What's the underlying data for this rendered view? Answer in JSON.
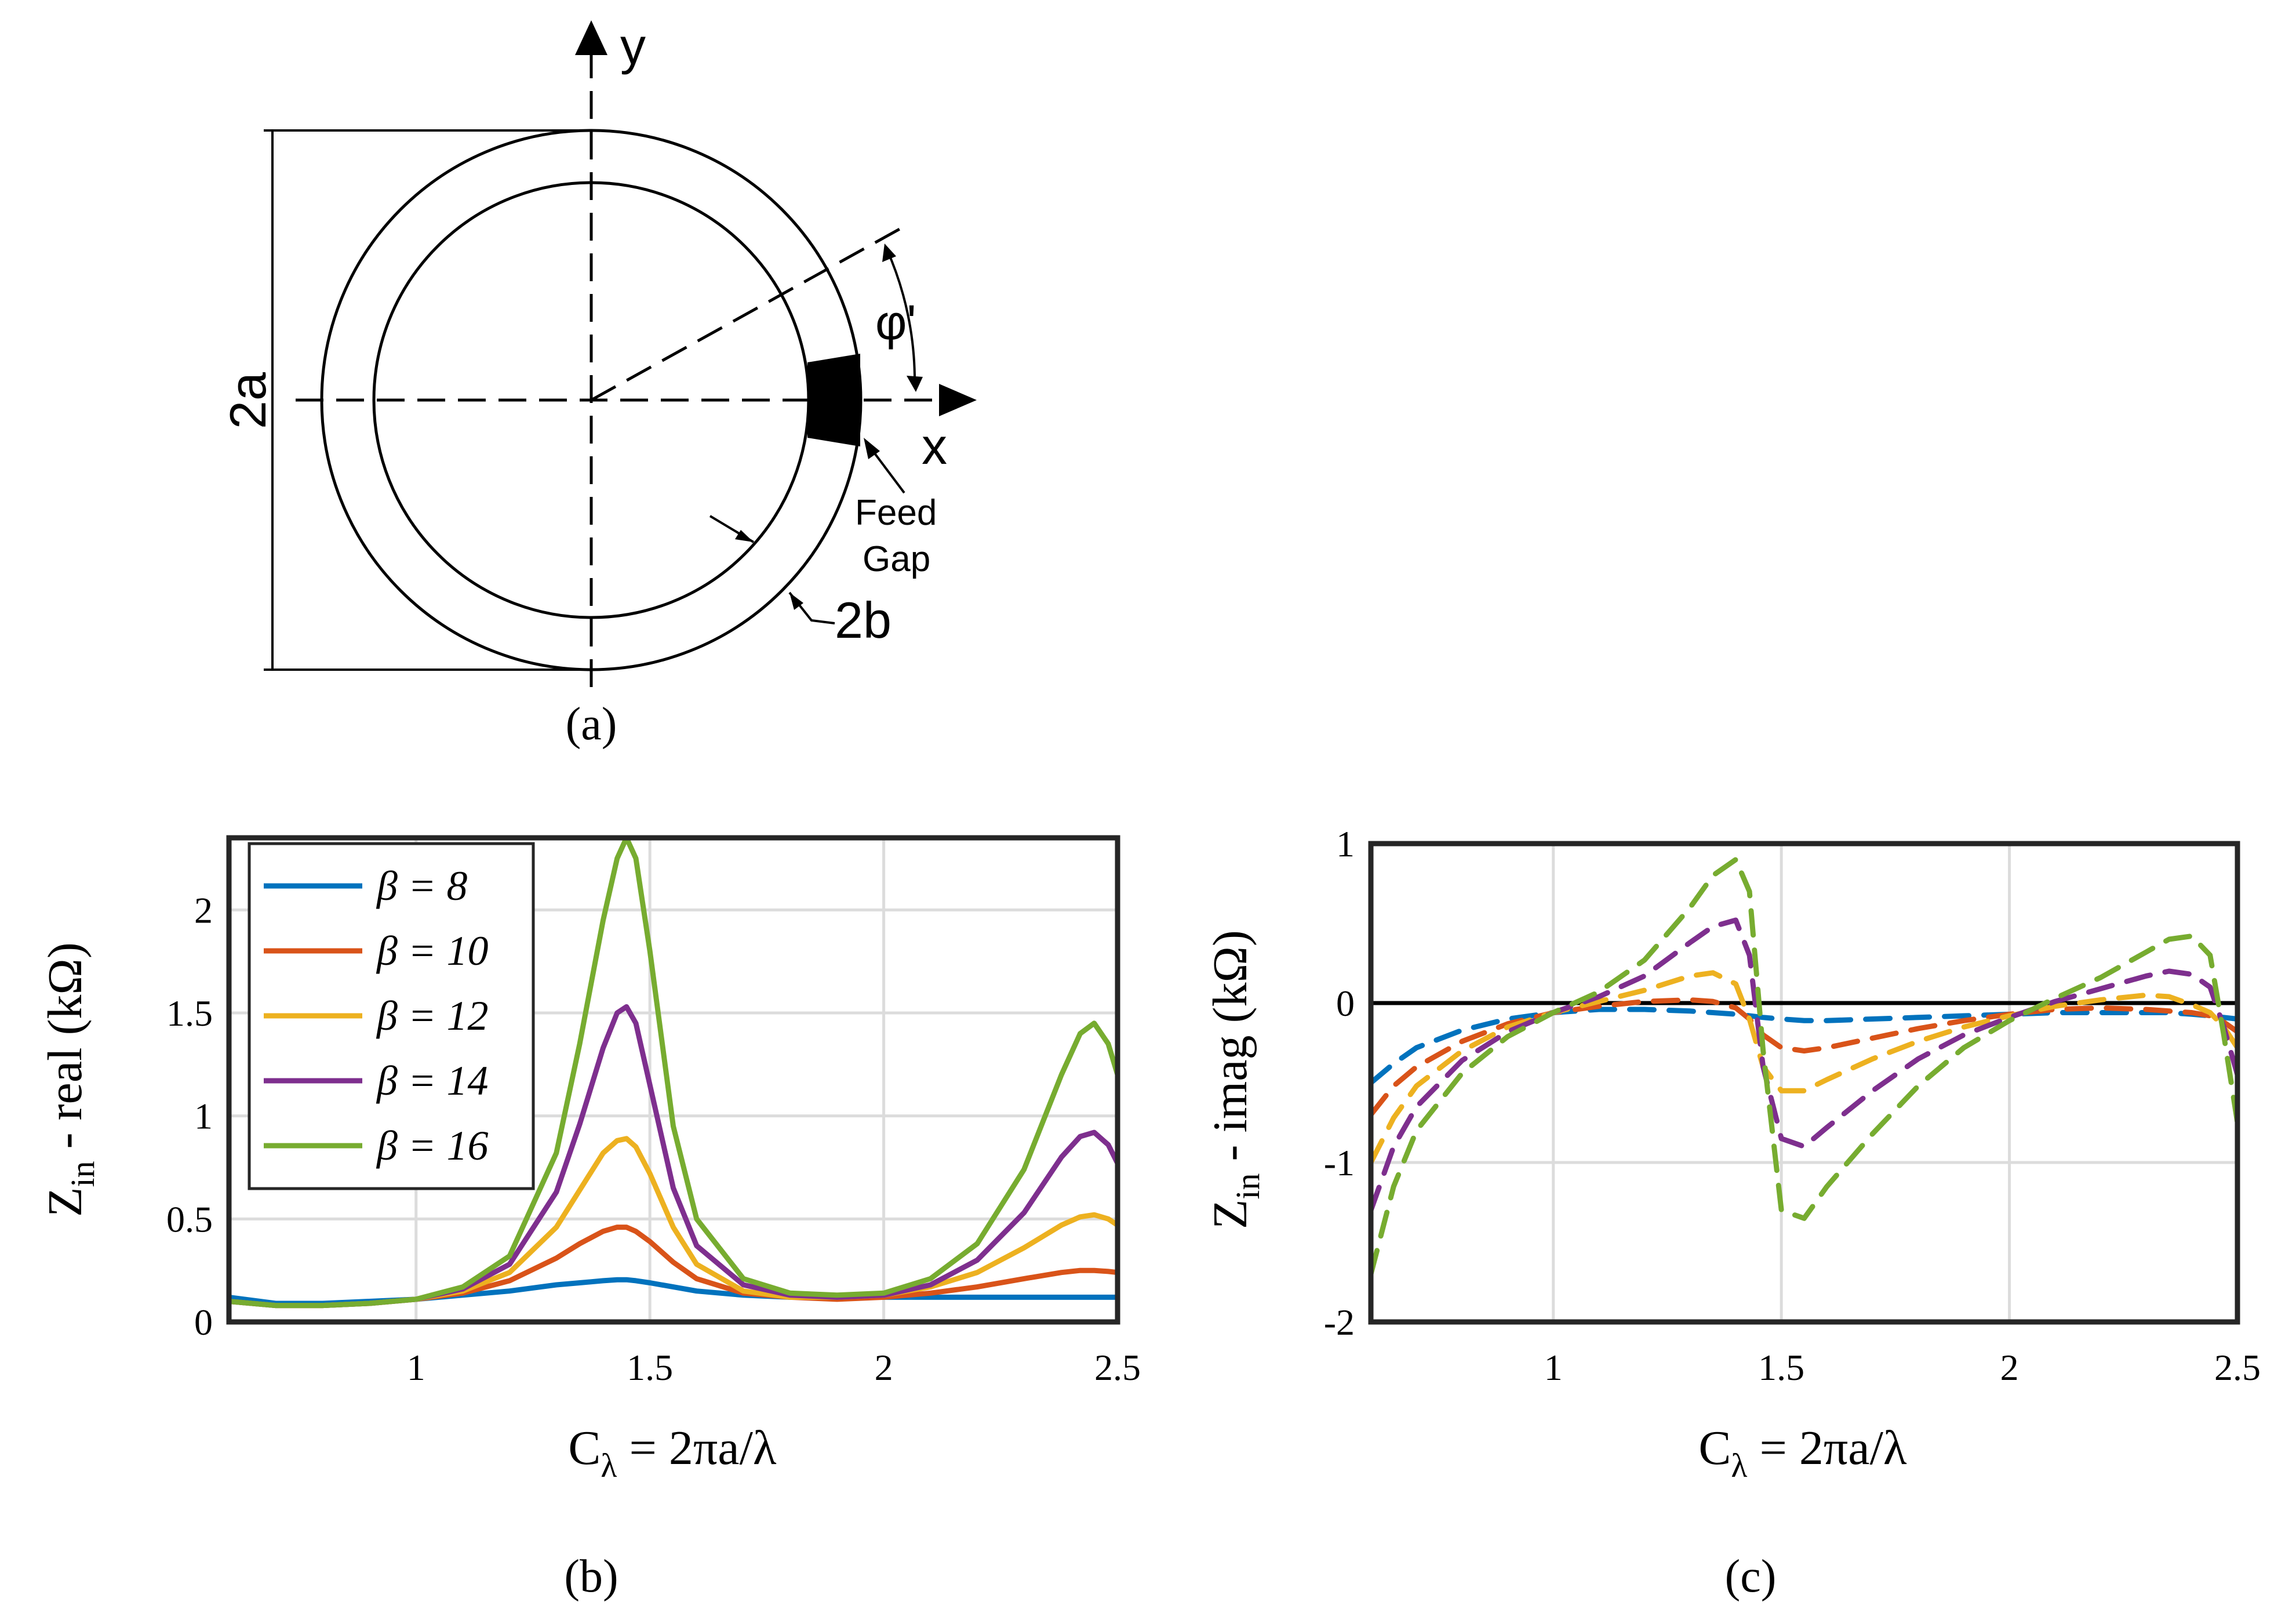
{
  "diagram": {
    "y_axis_label": "y",
    "x_axis_label": "x",
    "diameter_label": "2a",
    "wire_label": "2b",
    "angle_label": "φ'",
    "feed_label_line1": "Feed",
    "feed_label_line2": "Gap",
    "caption": "(a)"
  },
  "colors": {
    "series": [
      "#0072BD",
      "#D95319",
      "#EDB120",
      "#7E2F8E",
      "#77AC30"
    ],
    "grid": "#dcdcdc",
    "frame": "#262626"
  },
  "chart_data": [
    {
      "id": "b",
      "type": "line",
      "caption": "(b)",
      "title": "",
      "xlabel": "C_λ = 2πa/λ",
      "xlabel_main": "C",
      "xlabel_sub": "λ",
      "xlabel_rest": " = 2πa/λ",
      "ylabel": "Z_in - real (kΩ)",
      "ylabel_main": "Z",
      "ylabel_sub": "in",
      "ylabel_rest": " - real (kΩ)",
      "xlim": [
        0.6,
        2.5
      ],
      "ylim": [
        0,
        2.35
      ],
      "xticks": [
        1,
        1.5,
        2,
        2.5
      ],
      "xtick_labels": [
        "1",
        "1.5",
        "2",
        "2.5"
      ],
      "yticks": [
        0,
        0.5,
        1,
        1.5,
        2
      ],
      "ytick_labels": [
        "0",
        "0.5",
        "1",
        "1.5",
        "2"
      ],
      "grid": true,
      "legend_position": "top-left",
      "line_style": "solid",
      "x": [
        0.6,
        0.7,
        0.8,
        0.9,
        1.0,
        1.1,
        1.2,
        1.3,
        1.35,
        1.4,
        1.43,
        1.45,
        1.47,
        1.5,
        1.55,
        1.6,
        1.7,
        1.8,
        1.9,
        2.0,
        2.1,
        2.2,
        2.3,
        2.38,
        2.42,
        2.45,
        2.48,
        2.5
      ],
      "series": [
        {
          "name": "β = 8",
          "values": [
            0.12,
            0.09,
            0.09,
            0.1,
            0.11,
            0.13,
            0.15,
            0.18,
            0.19,
            0.2,
            0.205,
            0.205,
            0.2,
            0.19,
            0.17,
            0.15,
            0.13,
            0.12,
            0.12,
            0.12,
            0.12,
            0.12,
            0.12,
            0.12,
            0.12,
            0.12,
            0.12,
            0.12
          ]
        },
        {
          "name": "β = 10",
          "values": [
            0.1,
            0.08,
            0.08,
            0.09,
            0.11,
            0.14,
            0.2,
            0.31,
            0.38,
            0.44,
            0.46,
            0.46,
            0.44,
            0.39,
            0.29,
            0.21,
            0.14,
            0.12,
            0.11,
            0.12,
            0.14,
            0.17,
            0.21,
            0.24,
            0.25,
            0.25,
            0.245,
            0.24
          ]
        },
        {
          "name": "β = 12",
          "values": [
            0.1,
            0.08,
            0.08,
            0.09,
            0.11,
            0.15,
            0.24,
            0.46,
            0.64,
            0.82,
            0.88,
            0.89,
            0.85,
            0.72,
            0.46,
            0.28,
            0.15,
            0.12,
            0.12,
            0.13,
            0.17,
            0.24,
            0.36,
            0.47,
            0.51,
            0.52,
            0.5,
            0.47
          ]
        },
        {
          "name": "β = 14",
          "values": [
            0.1,
            0.08,
            0.08,
            0.09,
            0.11,
            0.16,
            0.28,
            0.63,
            0.96,
            1.33,
            1.5,
            1.53,
            1.45,
            1.15,
            0.65,
            0.37,
            0.18,
            0.13,
            0.12,
            0.13,
            0.18,
            0.3,
            0.53,
            0.8,
            0.9,
            0.92,
            0.86,
            0.77
          ]
        },
        {
          "name": "β = 16",
          "values": [
            0.1,
            0.08,
            0.08,
            0.09,
            0.11,
            0.17,
            0.32,
            0.82,
            1.35,
            1.95,
            2.25,
            2.35,
            2.25,
            1.8,
            0.95,
            0.5,
            0.21,
            0.14,
            0.13,
            0.14,
            0.21,
            0.38,
            0.74,
            1.2,
            1.4,
            1.45,
            1.35,
            1.2
          ]
        }
      ]
    },
    {
      "id": "c",
      "type": "line",
      "caption": "(c)",
      "title": "",
      "xlabel": "C_λ = 2πa/λ",
      "xlabel_main": "C",
      "xlabel_sub": "λ",
      "xlabel_rest": " = 2πa/λ",
      "ylabel": "Z_in - imag (kΩ)",
      "ylabel_main": "Z",
      "ylabel_sub": "in",
      "ylabel_rest": " - imag (kΩ)",
      "xlim": [
        0.6,
        2.5
      ],
      "ylim": [
        -2,
        1
      ],
      "xticks": [
        1,
        1.5,
        2,
        2.5
      ],
      "xtick_labels": [
        "1",
        "1.5",
        "2",
        "2.5"
      ],
      "yticks": [
        -2,
        -1,
        0,
        1
      ],
      "ytick_labels": [
        "-2",
        "-1",
        "0",
        "1"
      ],
      "grid": true,
      "zero_line": true,
      "line_style": "dashed",
      "x": [
        0.6,
        0.65,
        0.7,
        0.8,
        0.9,
        1.0,
        1.1,
        1.2,
        1.3,
        1.35,
        1.4,
        1.43,
        1.46,
        1.5,
        1.55,
        1.6,
        1.7,
        1.8,
        1.9,
        2.0,
        2.1,
        2.2,
        2.3,
        2.35,
        2.4,
        2.44,
        2.47,
        2.5
      ],
      "series": [
        {
          "name": "β = 8",
          "values": [
            -0.5,
            -0.38,
            -0.28,
            -0.17,
            -0.1,
            -0.06,
            -0.04,
            -0.04,
            -0.05,
            -0.06,
            -0.07,
            -0.08,
            -0.09,
            -0.1,
            -0.11,
            -0.11,
            -0.1,
            -0.09,
            -0.08,
            -0.07,
            -0.06,
            -0.06,
            -0.06,
            -0.06,
            -0.07,
            -0.08,
            -0.09,
            -0.1
          ]
        },
        {
          "name": "β = 10",
          "values": [
            -0.7,
            -0.52,
            -0.4,
            -0.24,
            -0.13,
            -0.06,
            -0.02,
            0.01,
            0.02,
            0.01,
            -0.03,
            -0.1,
            -0.2,
            -0.28,
            -0.3,
            -0.28,
            -0.22,
            -0.16,
            -0.11,
            -0.07,
            -0.04,
            -0.03,
            -0.04,
            -0.05,
            -0.06,
            -0.08,
            -0.12,
            -0.18
          ]
        },
        {
          "name": "β = 12",
          "values": [
            -1.0,
            -0.72,
            -0.52,
            -0.3,
            -0.15,
            -0.06,
            0.01,
            0.08,
            0.17,
            0.19,
            0.12,
            -0.1,
            -0.4,
            -0.55,
            -0.55,
            -0.48,
            -0.35,
            -0.24,
            -0.15,
            -0.08,
            -0.02,
            0.02,
            0.05,
            0.04,
            -0.01,
            -0.06,
            -0.15,
            -0.28
          ]
        },
        {
          "name": "β = 14",
          "values": [
            -1.3,
            -0.9,
            -0.65,
            -0.36,
            -0.18,
            -0.06,
            0.04,
            0.17,
            0.38,
            0.48,
            0.52,
            0.3,
            -0.4,
            -0.85,
            -0.9,
            -0.78,
            -0.55,
            -0.35,
            -0.2,
            -0.09,
            0.01,
            0.09,
            0.17,
            0.2,
            0.18,
            0.1,
            -0.15,
            -0.45
          ]
        },
        {
          "name": "β = 16",
          "values": [
            -1.7,
            -1.15,
            -0.8,
            -0.44,
            -0.21,
            -0.06,
            0.07,
            0.27,
            0.6,
            0.8,
            0.9,
            0.7,
            -0.3,
            -1.3,
            -1.35,
            -1.15,
            -0.82,
            -0.52,
            -0.28,
            -0.11,
            0.03,
            0.16,
            0.32,
            0.4,
            0.42,
            0.3,
            -0.2,
            -0.75
          ]
        }
      ]
    }
  ]
}
